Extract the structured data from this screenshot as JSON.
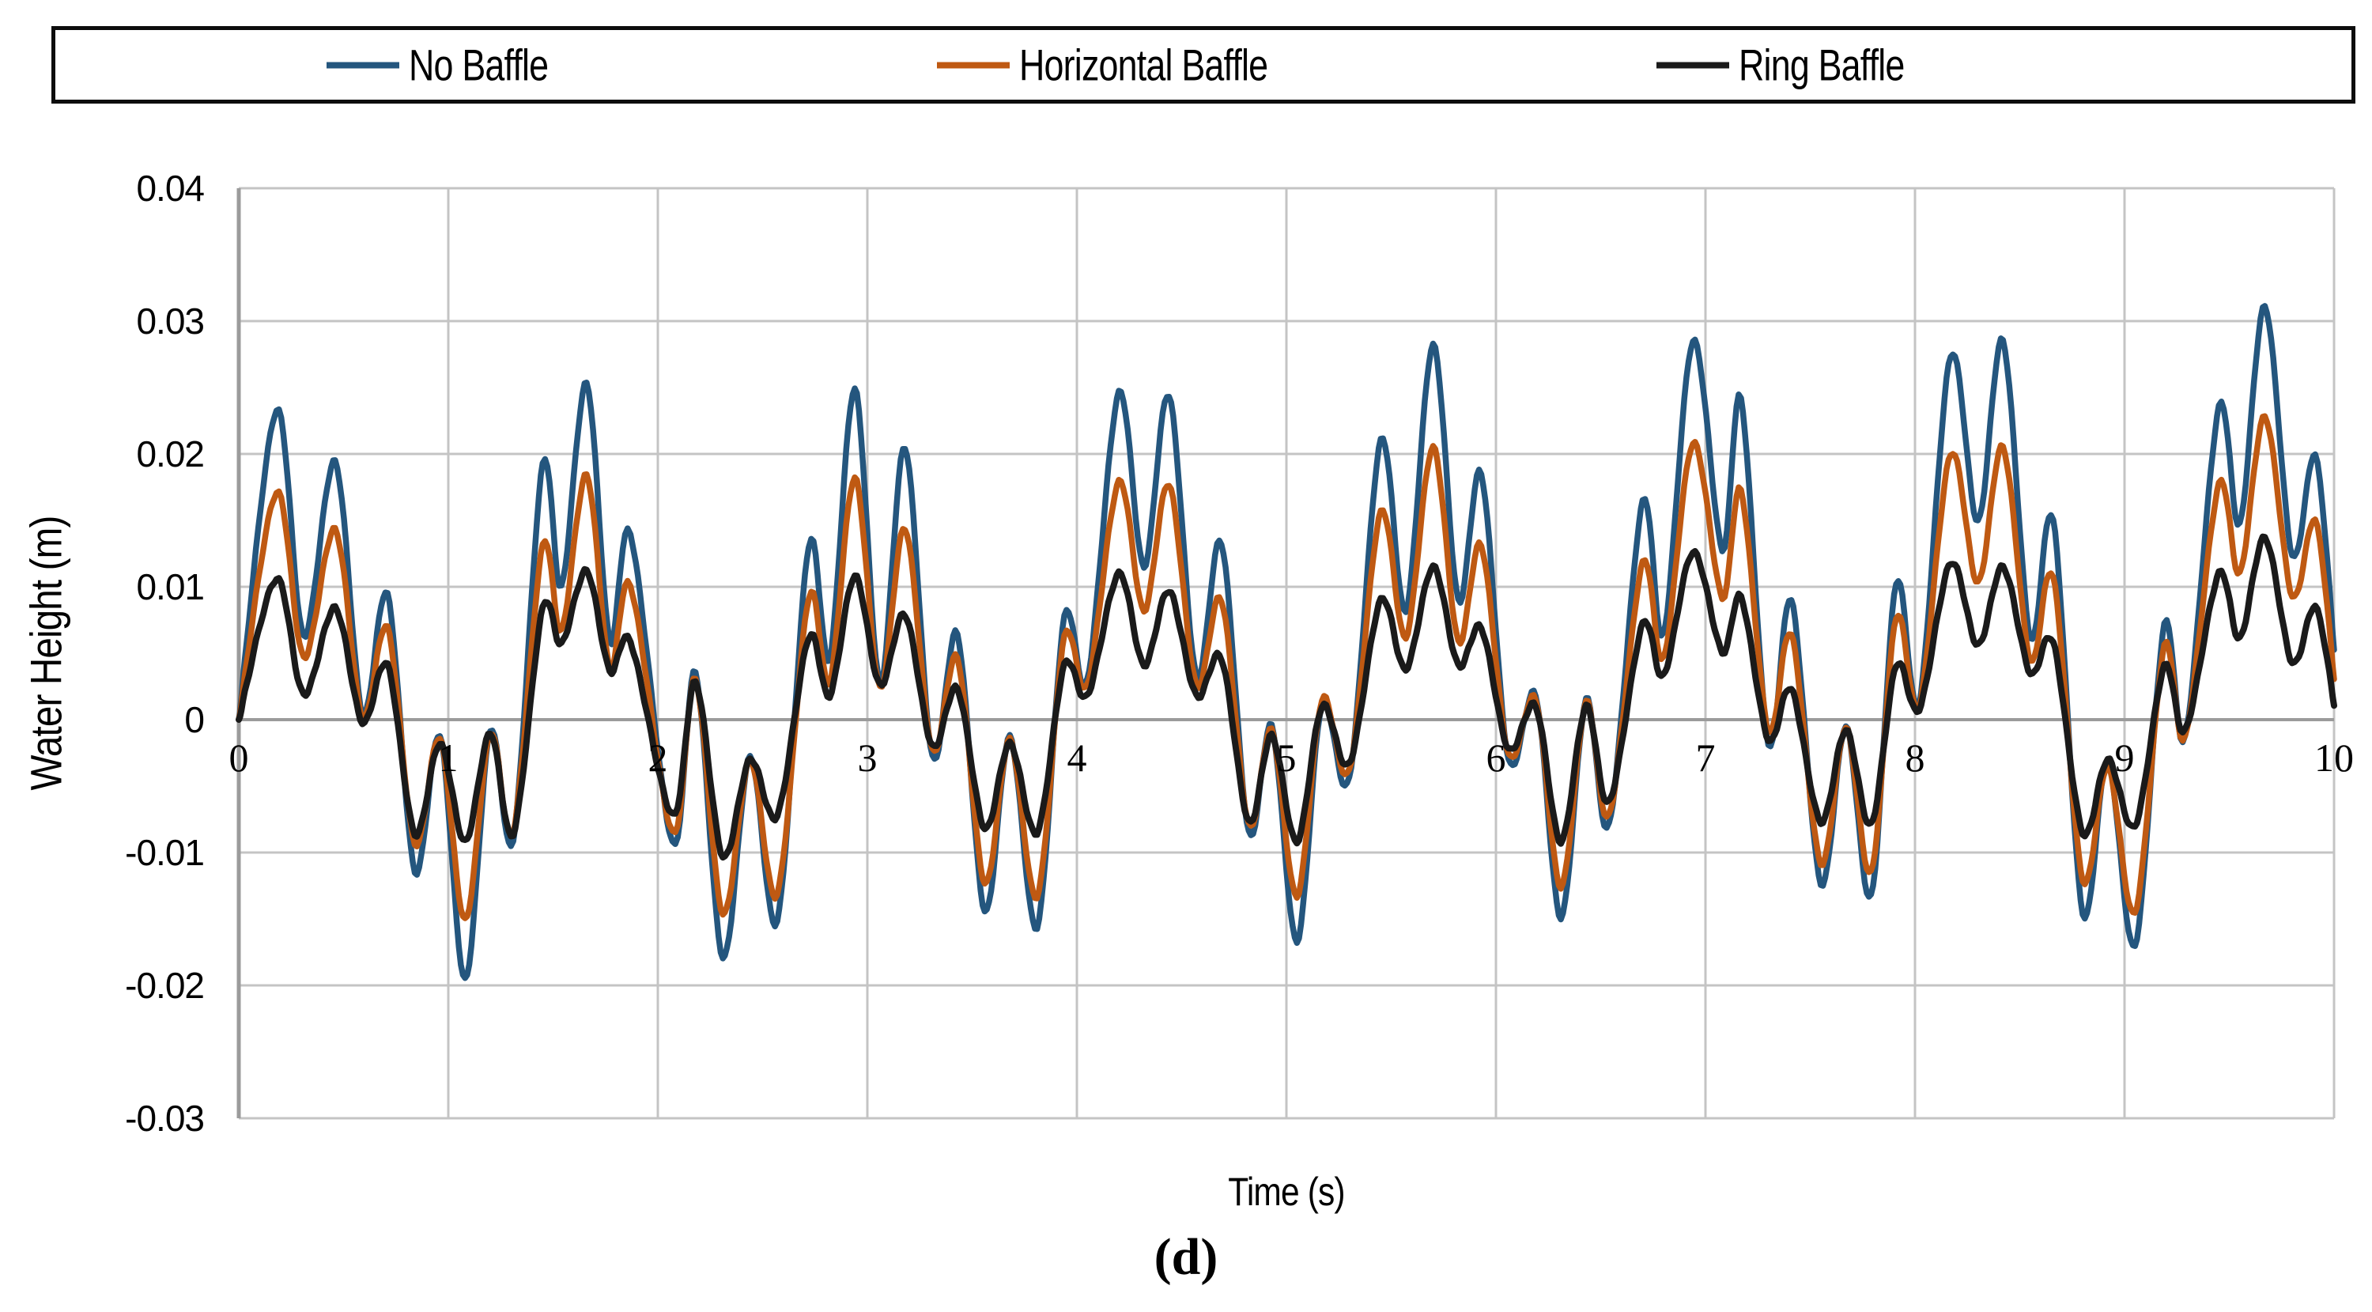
{
  "figure": {
    "panel_label": "(d)"
  },
  "chart_data": {
    "type": "line",
    "title": "",
    "xlabel": "Time  (s)",
    "ylabel": "Water Height  (m)",
    "xlim": [
      0,
      10
    ],
    "ylim": [
      -0.03,
      0.04
    ],
    "grid": true,
    "legend_position": "top",
    "x_ticks": [
      {
        "label": "0",
        "value": 0
      },
      {
        "label": "1",
        "value": 1
      },
      {
        "label": "2",
        "value": 2
      },
      {
        "label": "3",
        "value": 3
      },
      {
        "label": "4",
        "value": 4
      },
      {
        "label": "5",
        "value": 5
      },
      {
        "label": "6",
        "value": 6
      },
      {
        "label": "7",
        "value": 7
      },
      {
        "label": "8",
        "value": 8
      },
      {
        "label": "9",
        "value": 9
      },
      {
        "label": "10",
        "value": 10
      }
    ],
    "y_ticks": [
      {
        "label": "0.04",
        "value": 0.04
      },
      {
        "label": "0.03",
        "value": 0.03
      },
      {
        "label": "0.02",
        "value": 0.02
      },
      {
        "label": "0.01",
        "value": 0.01
      },
      {
        "label": "0",
        "value": 0
      },
      {
        "label": "-0.01",
        "value": -0.01
      },
      {
        "label": "-0.02",
        "value": -0.02
      },
      {
        "label": "-0.03",
        "value": -0.03
      }
    ],
    "t": [
      0,
      0.18,
      0.31,
      0.46,
      0.59,
      0.71,
      0.84,
      0.96,
      1.08,
      1.2,
      1.31,
      1.45,
      1.54,
      1.66,
      1.77,
      1.87,
      2.07,
      2.18,
      2.31,
      2.44,
      2.57,
      2.72,
      2.82,
      2.94,
      3.06,
      3.18,
      3.31,
      3.43,
      3.56,
      3.68,
      3.81,
      3.94,
      4.05,
      4.2,
      4.32,
      4.44,
      4.57,
      4.69,
      4.82,
      4.93,
      5.05,
      5.17,
      5.3,
      5.45,
      5.57,
      5.7,
      5.82,
      5.93,
      6.06,
      6.19,
      6.31,
      6.43,
      6.54,
      6.7,
      6.8,
      6.94,
      7.08,
      7.17,
      7.3,
      7.41,
      7.55,
      7.67,
      7.79,
      7.91,
      8.02,
      8.17,
      8.3,
      8.42,
      8.55,
      8.66,
      8.8,
      8.92,
      9.05,
      9.19,
      9.29,
      9.45,
      9.55,
      9.67,
      9.8,
      9.91,
      10
    ],
    "series": [
      {
        "name": "No Baffle",
        "color": "#24567E",
        "values": [
          0,
          0.0233,
          0.0063,
          0.0194,
          0.0005,
          0.0094,
          -0.0114,
          -0.0012,
          -0.0196,
          -0.0008,
          -0.009,
          0.0192,
          0.01,
          0.0253,
          0.006,
          0.0139,
          -0.0093,
          0.0035,
          -0.0179,
          -0.0028,
          -0.0151,
          0.0131,
          0.0046,
          0.0249,
          0.0028,
          0.0205,
          -0.0028,
          0.0064,
          -0.0144,
          -0.0013,
          -0.0156,
          0.0077,
          0.003,
          0.0246,
          0.0115,
          0.0244,
          0.0033,
          0.0133,
          -0.0085,
          -0.0005,
          -0.0167,
          0.0013,
          -0.0044,
          0.021,
          0.0082,
          0.0282,
          0.009,
          0.0185,
          -0.003,
          0.0018,
          -0.0149,
          0.0015,
          -0.0079,
          0.0164,
          0.0064,
          0.0285,
          0.0128,
          0.0241,
          -0.0018,
          0.009,
          -0.0123,
          -0.0005,
          -0.0133,
          0.0103,
          0.0013,
          0.0274,
          0.0149,
          0.0285,
          0.0062,
          0.015,
          -0.0145,
          -0.003,
          -0.017,
          0.0071,
          -0.0013,
          0.0235,
          0.0147,
          0.0311,
          0.0124,
          0.0199,
          0.0054
        ]
      },
      {
        "name": "Horizontal Baffle",
        "color": "#BF5912",
        "values": [
          0,
          0.0171,
          0.0047,
          0.0143,
          0.0002,
          0.0069,
          -0.0093,
          -0.0014,
          -0.0151,
          -0.001,
          -0.0084,
          0.0131,
          0.0067,
          0.0184,
          0.0039,
          0.01,
          -0.0085,
          0.003,
          -0.0146,
          -0.003,
          -0.0131,
          0.0092,
          0.0028,
          0.0182,
          0.0024,
          0.0144,
          -0.0023,
          0.0046,
          -0.0123,
          -0.0015,
          -0.0133,
          0.0062,
          0.0026,
          0.0179,
          0.0082,
          0.0177,
          0.0026,
          0.009,
          -0.0079,
          -0.0008,
          -0.0133,
          0.0015,
          -0.0038,
          0.0156,
          0.0062,
          0.0205,
          0.0059,
          0.0131,
          -0.0026,
          0.0015,
          -0.0126,
          0.0013,
          -0.0072,
          0.0118,
          0.0046,
          0.0208,
          0.0092,
          0.0172,
          -0.0008,
          0.0064,
          -0.0108,
          -0.0006,
          -0.0115,
          0.0077,
          0.001,
          0.02,
          0.0103,
          0.0205,
          0.0045,
          0.0107,
          -0.012,
          -0.0035,
          -0.0145,
          0.0055,
          -0.0013,
          0.0177,
          0.011,
          0.0228,
          0.0093,
          0.015,
          0.0032
        ]
      },
      {
        "name": "Ring Baffle",
        "color": "#1A1A1A",
        "values": [
          0,
          0.0106,
          0.0019,
          0.0084,
          -0.0002,
          0.0041,
          -0.0086,
          -0.0018,
          -0.0092,
          -0.001,
          -0.0086,
          0.0084,
          0.0057,
          0.0112,
          0.0037,
          0.0058,
          -0.0072,
          0.0028,
          -0.0103,
          -0.003,
          -0.0072,
          0.0062,
          0.0018,
          0.0108,
          0.0026,
          0.0079,
          -0.002,
          0.0023,
          -0.0082,
          -0.0018,
          -0.0085,
          0.0041,
          0.0018,
          0.011,
          0.0041,
          0.0097,
          0.0018,
          0.0046,
          -0.0077,
          -0.0012,
          -0.0092,
          0.001,
          -0.0033,
          0.009,
          0.0038,
          0.0115,
          0.0041,
          0.0069,
          -0.0022,
          0.001,
          -0.0092,
          0.001,
          -0.0062,
          0.0072,
          0.0033,
          0.0126,
          0.0051,
          0.0092,
          -0.0015,
          0.0023,
          -0.0077,
          -0.0008,
          -0.0079,
          0.0041,
          0.0008,
          0.0118,
          0.0056,
          0.0115,
          0.0035,
          0.0058,
          -0.0085,
          -0.003,
          -0.008,
          0.004,
          -0.0008,
          0.011,
          0.0061,
          0.0137,
          0.0043,
          0.0085,
          0.0012
        ]
      }
    ],
    "style": {
      "grid_color": "#C4C4C4",
      "axis_color": "#9B9B9B",
      "background": "#FFFFFF"
    }
  }
}
